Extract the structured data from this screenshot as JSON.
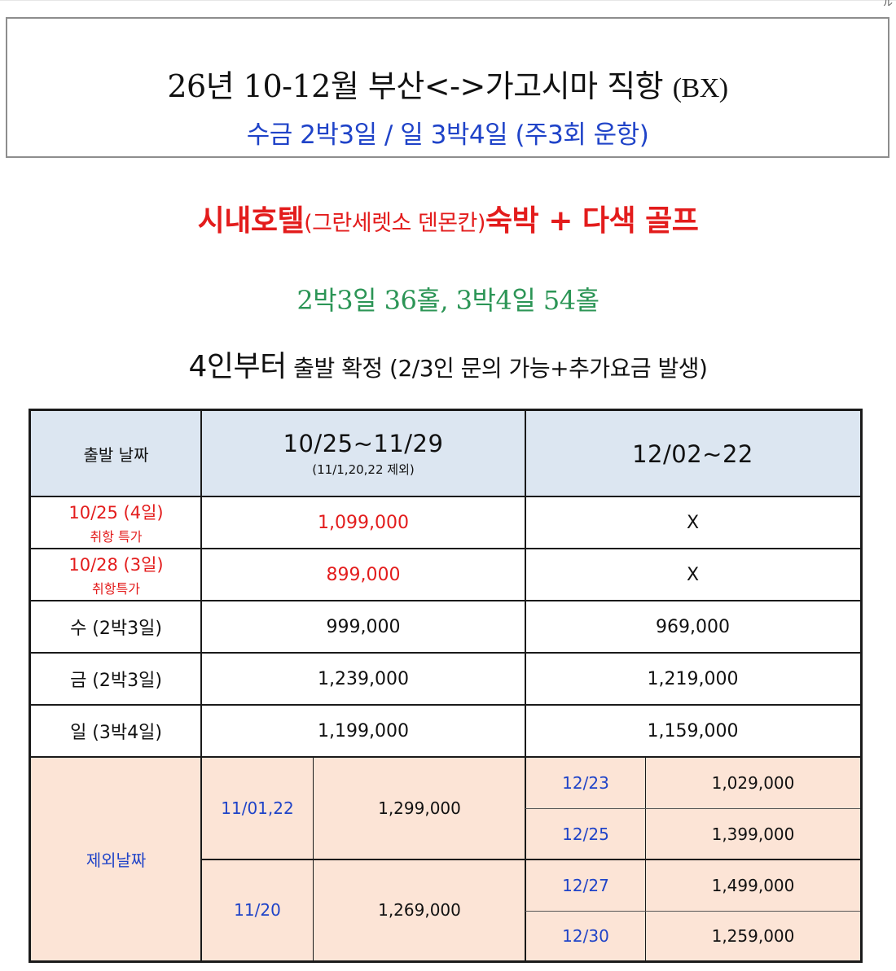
{
  "corner_mark": "ル",
  "title": {
    "line1_main": "26년 10-12월  부산<->가고시마 직항 ",
    "line1_suffix": "(BX)",
    "line2": "수금 2박3일 / 일 3박4일 (주3회 운항)"
  },
  "hotel": {
    "prefix": "시내호텔",
    "hotel_name": "(그란세렛소 덴몬칸)",
    "suffix": "숙박 + 다색 골프"
  },
  "holes": "2박3일 36홀, 3박4일 54홀",
  "departure": {
    "big": "4인부터",
    "rest": " 출발 확정 (2/3인 문의 가능+추가요금 발생)"
  },
  "table": {
    "header": {
      "date_label": "출발 날짜",
      "period1": "10/25~11/29",
      "period1_note": "(11/1,20,22 제외)",
      "period2": "12/02~22"
    },
    "special_rows": [
      {
        "date": "10/25 (4일)",
        "note": "취항 특가",
        "price1": "1,099,000",
        "price2": "X"
      },
      {
        "date": "10/28 (3일)",
        "note": "취항특가",
        "price1": "899,000",
        "price2": "X"
      }
    ],
    "rows": [
      {
        "day": "수 (2박3일)",
        "price1": "999,000",
        "price2": "969,000"
      },
      {
        "day": "금 (2박3일)",
        "price1": "1,239,000",
        "price2": "1,219,000"
      },
      {
        "day": "일 (3박4일)",
        "price1": "1,199,000",
        "price2": "1,159,000"
      }
    ],
    "excluded": {
      "label": "제외날짜",
      "left": [
        {
          "date": "11/01,22",
          "price": "1,299,000"
        },
        {
          "date": "11/20",
          "price": "1,269,000"
        }
      ],
      "right": [
        {
          "date": "12/23",
          "price": "1,029,000"
        },
        {
          "date": "12/25",
          "price": "1,399,000"
        },
        {
          "date": "12/27",
          "price": "1,499,000"
        },
        {
          "date": "12/30",
          "price": "1,259,000"
        }
      ]
    }
  },
  "colors": {
    "title_blue": "#1f43c8",
    "hotel_red": "#e31c1c",
    "holes_green": "#2c9556",
    "header_bg": "#dce6f1",
    "excluded_bg": "#fce4d6"
  }
}
